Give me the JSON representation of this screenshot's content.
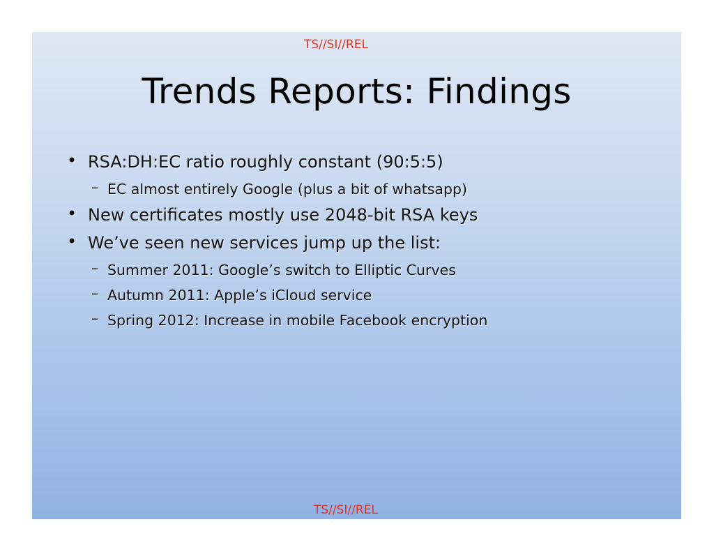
{
  "slide": {
    "classification_top": "TS//SI//REL",
    "classification_bottom": "TS//SI//REL",
    "title": "Trends Reports: Findings",
    "bullets": [
      {
        "marker": "•",
        "text": "RSA:DH:EC ratio roughly constant (90:5:5)",
        "subitems": [
          {
            "marker": "–",
            "text": "EC almost entirely Google (plus a bit of whatsapp)"
          }
        ]
      },
      {
        "marker": "•",
        "text": "New certificates mostly use 2048-bit RSA keys",
        "subitems": []
      },
      {
        "marker": "•",
        "text": "We’ve seen new services jump up the list:",
        "subitems": [
          {
            "marker": "–",
            "text": "Summer 2011: Google’s switch to Elliptic Curves"
          },
          {
            "marker": "–",
            "text": "Autumn 2011: Apple’s iCloud service"
          },
          {
            "marker": "–",
            "text": "Spring 2012: Increase in mobile Facebook encryption"
          }
        ]
      }
    ]
  },
  "colors": {
    "classification": "#e8321e",
    "background_top": "#dfe8f5",
    "background_bottom": "#8fb2e5",
    "text": "#000000"
  }
}
